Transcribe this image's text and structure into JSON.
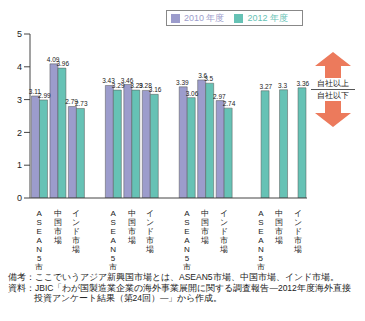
{
  "chart_data": {
    "type": "bar",
    "categories": [
      "ASEAN5市場",
      "中国市場",
      "インド市場",
      null,
      "ASEAN5市場",
      "中国市場",
      "インド市場",
      null,
      "ASEAN5市場",
      "中国市場",
      "インド市場",
      null,
      "ASEAN5市場",
      "中国市場",
      "インド市場"
    ],
    "series": [
      {
        "name": "2010 年度",
        "color": "#9c9ccc",
        "values": [
          3.11,
          4.09,
          2.79,
          null,
          3.43,
          3.46,
          3.28,
          null,
          3.39,
          3.6,
          2.97,
          null,
          null,
          null,
          null
        ]
      },
      {
        "name": "2012 年度",
        "color": "#66c2b5",
        "values": [
          2.99,
          3.96,
          2.73,
          null,
          3.29,
          3.29,
          3.16,
          null,
          3.06,
          3.5,
          2.74,
          null,
          3.27,
          3.3,
          3.36
        ]
      }
    ],
    "ylim": [
      0,
      5
    ],
    "yticks": [
      0,
      1,
      2,
      3,
      4,
      5
    ],
    "grid": false,
    "legend": "top",
    "data_labels": true,
    "annotations": [
      "自社以上",
      "自社以下"
    ],
    "notes": [
      "備考：ここでいうアジア新興国市場とは、ASEAN5市場、中国市場、インド市場。",
      "資料：JBIC「わが国製造業企業の海外事業展開に関する調査報告―2012年度海外直接投資アンケート結果（第24回）―」から作成。"
    ]
  }
}
